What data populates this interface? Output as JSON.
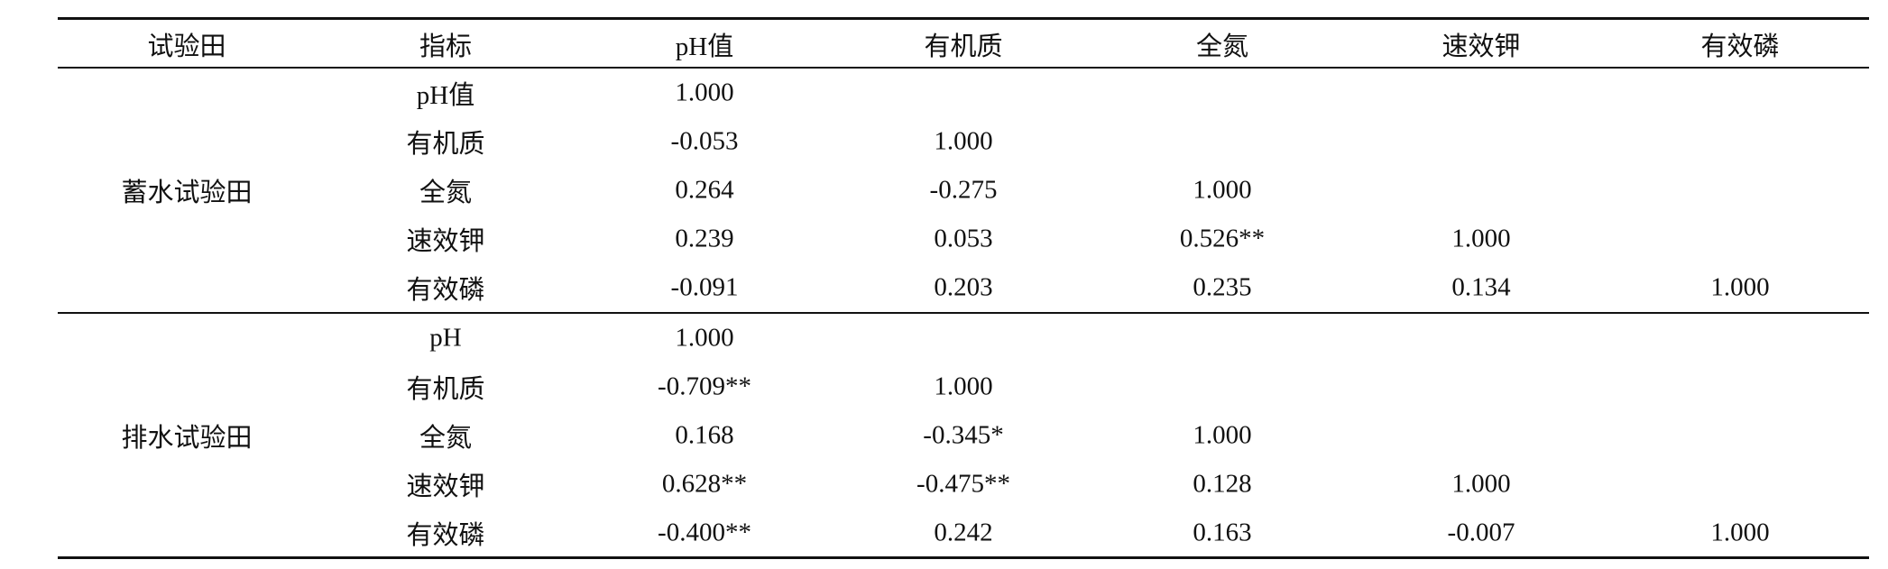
{
  "table": {
    "header": [
      "试验田",
      "指标",
      "pH值",
      "有机质",
      "全氮",
      "速效钾",
      "有效磷"
    ],
    "groups": [
      {
        "name": "蓄水试验田",
        "rows": [
          [
            "pH值",
            "1.000"
          ],
          [
            "有机质",
            "-0.053",
            "1.000"
          ],
          [
            "全氮",
            "0.264",
            "-0.275",
            "1.000"
          ],
          [
            "速效钾",
            "0.239",
            "0.053",
            "0.526**",
            "1.000"
          ],
          [
            "有效磷",
            "-0.091",
            "0.203",
            "0.235",
            "0.134",
            "1.000"
          ]
        ]
      },
      {
        "name": "排水试验田",
        "rows": [
          [
            "pH",
            "1.000"
          ],
          [
            "有机质",
            "-0.709**",
            "1.000"
          ],
          [
            "全氮",
            "0.168",
            "-0.345*",
            "1.000"
          ],
          [
            "速效钾",
            "0.628**",
            "-0.475**",
            "0.128",
            "1.000"
          ],
          [
            "有效磷",
            "-0.400**",
            "0.242",
            "0.163",
            "-0.007",
            "1.000"
          ]
        ]
      }
    ]
  }
}
